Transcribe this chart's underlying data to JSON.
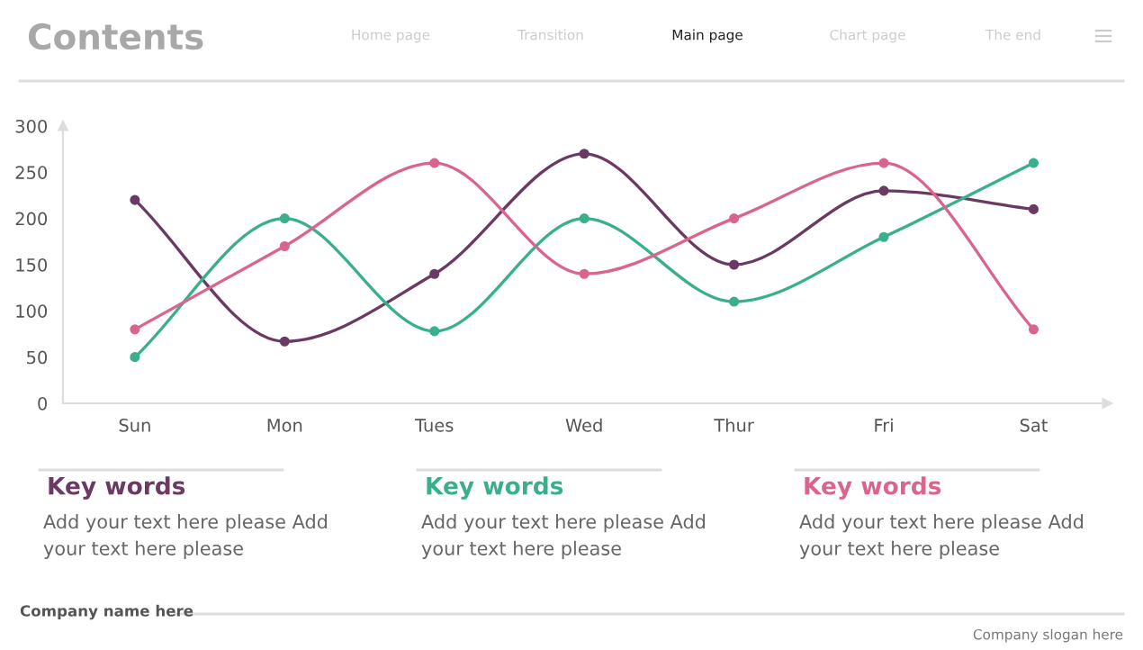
{
  "chart_data": {
    "type": "line",
    "categories": [
      "Sun",
      "Mon",
      "Tues",
      "Wed",
      "Thur",
      "Fri",
      "Sat"
    ],
    "series": [
      {
        "color": "#6b3a63",
        "values": [
          220,
          67,
          140,
          270,
          150,
          230,
          210
        ]
      },
      {
        "color": "#3aaf8e",
        "values": [
          50,
          200,
          78,
          200,
          110,
          180,
          260
        ]
      },
      {
        "color": "#d9668a",
        "values": [
          80,
          170,
          260,
          140,
          200,
          260,
          80
        ]
      }
    ],
    "ylim": [
      0,
      300
    ],
    "yticks": [
      0,
      50,
      100,
      150,
      200,
      250,
      300
    ],
    "grid": false,
    "marker": "circle",
    "line_style": "solid",
    "annotations": [
      "Contents",
      "Home page",
      "Transition",
      "Main page",
      "Chart page",
      "The end",
      "Key words",
      "Add your text here please Add your text here please",
      "Key words",
      "Add your text here please Add your text here please",
      "Key words",
      "Add your text here please Add your text here please",
      "Company name here",
      "Company slogan here"
    ]
  }
}
